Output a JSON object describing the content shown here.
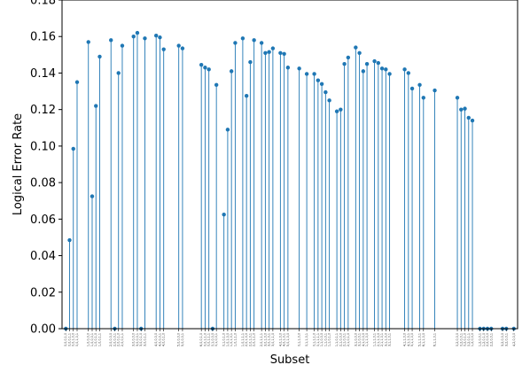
{
  "chart_data": {
    "type": "stem",
    "title": "",
    "xlabel": "Subset",
    "ylabel": "Logical Error Rate",
    "ylim": [
      0.0,
      0.18
    ],
    "yticks": [
      0.0,
      0.02,
      0.04,
      0.06,
      0.08,
      0.1,
      0.12,
      0.14,
      0.16,
      0.18
    ],
    "ytick_labels": [
      "0.00",
      "0.02",
      "0.04",
      "0.06",
      "0.08",
      "0.10",
      "0.12",
      "0.14",
      "0.16",
      "0.18"
    ],
    "xlim": [
      -1,
      120
    ],
    "color": "#1f77b4",
    "grid": false,
    "legend": "none",
    "x": [
      0,
      1,
      2,
      3,
      6,
      7,
      8,
      9,
      12,
      13,
      14,
      15,
      18,
      19,
      20,
      21,
      24,
      25,
      26,
      30,
      31,
      36,
      37,
      38,
      39,
      40,
      42,
      43,
      44,
      45,
      47,
      48,
      49,
      50,
      52,
      53,
      54,
      55,
      57,
      58,
      59,
      62,
      64,
      66,
      67,
      68,
      69,
      70,
      72,
      73,
      74,
      75,
      77,
      78,
      79,
      80,
      82,
      83,
      84,
      85,
      86,
      90,
      91,
      92,
      94,
      95,
      98,
      104,
      105,
      106,
      107,
      108,
      110,
      111,
      112,
      113,
      116,
      117,
      119
    ],
    "y": [
      0.0,
      0.0485,
      0.0985,
      0.135,
      0.157,
      0.0725,
      0.122,
      0.149,
      0.158,
      0.0,
      0.14,
      0.155,
      0.16,
      0.162,
      0.0,
      0.159,
      0.1605,
      0.1595,
      0.153,
      0.155,
      0.1535,
      0.1445,
      0.143,
      0.142,
      0.0,
      0.1335,
      0.0625,
      0.109,
      0.141,
      0.1565,
      0.159,
      0.1275,
      0.146,
      0.158,
      0.1565,
      0.151,
      0.1515,
      0.1535,
      0.151,
      0.1505,
      0.143,
      0.1425,
      0.1395,
      0.1395,
      0.136,
      0.134,
      0.1295,
      0.125,
      0.119,
      0.12,
      0.145,
      0.1485,
      0.154,
      0.151,
      0.141,
      0.145,
      0.1465,
      0.1455,
      0.1425,
      0.142,
      0.1395,
      0.142,
      0.14,
      0.1315,
      0.1335,
      0.1265,
      0.1305,
      0.1265,
      0.12,
      0.1205,
      0.1155,
      0.114,
      0.0,
      0.0,
      0.0,
      0.0,
      0.0,
      0.0,
      0.0
    ],
    "category_labels": [
      "0,0,0,1,0",
      "0,0,0,1,1",
      "0,0,1,0,0",
      "0,0,1,0,1",
      "1,0,0,0,0",
      "1,0,0,0,1",
      "1,0,0,1,0",
      "1,0,0,1,1",
      "2,0,0,0,0",
      "2,0,0,0,1",
      "2,0,0,1,0",
      "2,0,0,1,1",
      "3,0,0,0,0",
      "3,0,0,0,1",
      "3,0,0,1,0",
      "3,0,0,1,1",
      "4,0,0,0,0",
      "4,0,0,0,1",
      "4,0,0,1,0",
      "5,0,0,0,0",
      "5,0,0,0,1",
      "6,0,0,1,0",
      "0,0,1,1,0",
      "0,0,1,1,1",
      "0,1,0,0,0",
      "0,1,0,0,1",
      "0,1,0,1,0",
      "1,0,1,0,0",
      "1,0,1,0,1",
      "1,0,1,1,0",
      "1,0,1,1,1",
      "2,0,1,0,0",
      "2,0,1,0,1",
      "2,0,1,1,0",
      "2,0,1,1,1",
      "3,0,1,0,0",
      "3,0,1,0,1",
      "3,0,1,1,0",
      "4,0,1,0,0",
      "4,0,1,0,1",
      "5,0,1,0,0",
      "0,1,1,0,0",
      "0,1,1,0,1",
      "0,1,1,1,0",
      "0,1,1,1,1",
      "1,1,0,0,0",
      "1,1,0,0,1",
      "1,1,0,1,0",
      "1,1,0,1,1",
      "2,1,0,0,0",
      "2,1,0,0,1",
      "2,1,0,1,0",
      "3,1,0,0,0",
      "3,1,0,0,1",
      "4,1,0,0,0",
      "1,1,1,0,0",
      "1,1,1,0,1",
      "2,1,1,0,0",
      "2,1,1,0,1",
      "3,1,1,0,0",
      "3,1,1,0,1",
      "4,1,1,0,0",
      "4,1,1,0,1",
      "5,1,1,0,0",
      "5,1,1,0,1",
      "6,1,1,0,0",
      "6,1,1,0,1",
      "0,2,0,0,0",
      "0,2,0,0,1",
      "0,2,0,1,0",
      "0,2,0,1,1",
      "1,2,0,0,0",
      "1,2,0,0,1",
      "1,2,0,1,0",
      "2,2,0,0,0",
      "2,2,0,0,1",
      "3,2,0,0,0",
      "3,2,0,0,1",
      "4,2,0,0,0"
    ]
  }
}
